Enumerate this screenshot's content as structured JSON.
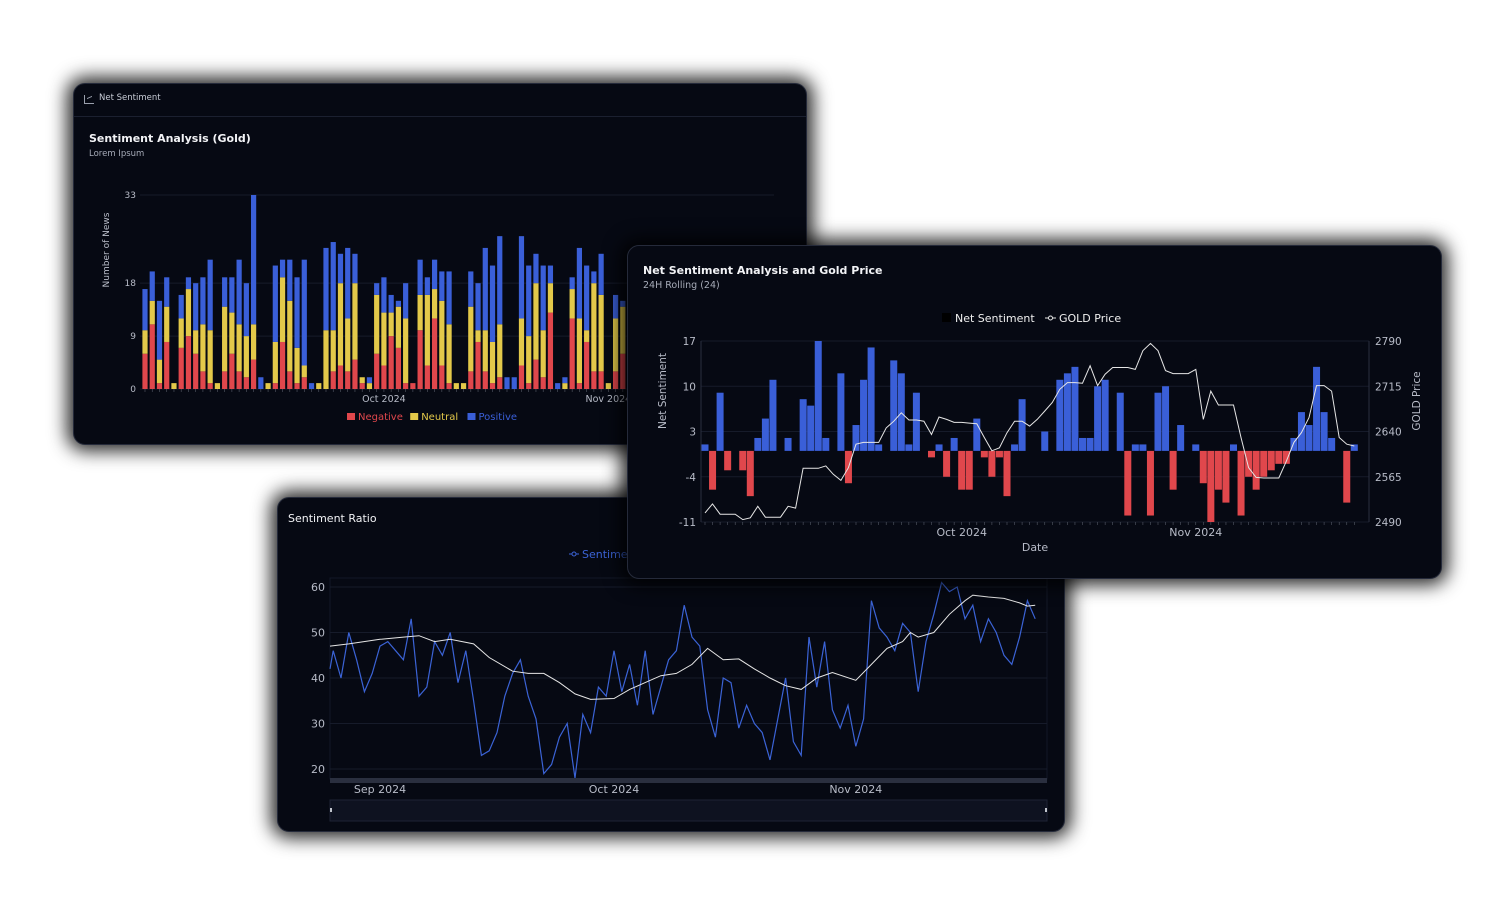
{
  "colors": {
    "negative": "#e0474c",
    "neutral": "#e3c94a",
    "positive": "#3a5fd8",
    "price": "#e6e6e6",
    "ratio": "#3b63d6",
    "card_bg": "#060913"
  },
  "card1": {
    "header_icon": "bar-chart-icon",
    "header": "Net Sentiment",
    "title": "Sentiment Analysis (Gold)",
    "subtitle": "Lorem Ipsum"
  },
  "card2": {
    "title": "Net Sentiment Analysis and Gold Price",
    "subtitle": "24H Rolling (24)"
  },
  "card3": {
    "title": "Sentiment Ratio"
  },
  "chart_data": [
    {
      "type": "bar",
      "stacked": true,
      "ylabel": "Number of News",
      "ylim": [
        0,
        33
      ],
      "y_ticks": [
        "0",
        "9",
        "18",
        "33"
      ],
      "x_start": "2024-08-29",
      "x_step": "1 day",
      "x_ticks": [
        {
          "label": "Oct 2024",
          "date": "2024-10-01"
        },
        {
          "label": "Nov 2024",
          "date": "2024-11-01"
        }
      ],
      "legend": "bottom",
      "grid": true,
      "series": [
        {
          "name": "Negative",
          "values": [
            6,
            11,
            1,
            8,
            0,
            7,
            9,
            6,
            3,
            1,
            0,
            3,
            6,
            3,
            2,
            5,
            0,
            0,
            1,
            8,
            3,
            1,
            2,
            0,
            0,
            0,
            3,
            4,
            3,
            5,
            1,
            0,
            6,
            4,
            9,
            7,
            1,
            1,
            10,
            4,
            12,
            4,
            1,
            0,
            0,
            3,
            8,
            3,
            1,
            2,
            0,
            0,
            4,
            1,
            5,
            2,
            13,
            0,
            0,
            12,
            1,
            8,
            3,
            3,
            0,
            3,
            6
          ]
        },
        {
          "name": "Neutral",
          "values": [
            4,
            4,
            4,
            6,
            1,
            5,
            8,
            4,
            8,
            9,
            1,
            11,
            7,
            8,
            7,
            6,
            0,
            1,
            7,
            11,
            12,
            6,
            2,
            0,
            1,
            10,
            7,
            14,
            9,
            13,
            1,
            1,
            10,
            9,
            4,
            7,
            11,
            0,
            6,
            12,
            5,
            11,
            10,
            1,
            1,
            11,
            2,
            7,
            7,
            9,
            0,
            0,
            8,
            8,
            13,
            8,
            5,
            0,
            1,
            5,
            11,
            2,
            15,
            13,
            1,
            9,
            8
          ]
        },
        {
          "name": "Positive",
          "values": [
            7,
            5,
            10,
            5,
            0,
            4,
            2,
            8,
            8,
            12,
            0,
            5,
            6,
            11,
            9,
            22,
            2,
            0,
            13,
            3,
            7,
            12,
            18,
            1,
            0,
            14,
            15,
            5,
            12,
            5,
            0,
            1,
            2,
            6,
            3,
            1,
            6,
            0,
            6,
            3,
            5,
            5,
            9,
            0,
            0,
            6,
            8,
            14,
            13,
            15,
            2,
            2,
            14,
            12,
            5,
            11,
            3,
            1,
            1,
            2,
            12,
            11,
            2,
            7,
            0,
            4,
            1
          ]
        }
      ]
    },
    {
      "type": "bar+line",
      "xlabel": "Date",
      "ylabel": "Net Sentiment",
      "y2label": "GOLD Price",
      "ylim": [
        -11,
        17
      ],
      "y_ticks": [
        "17",
        "10",
        "3",
        "-4",
        "-11"
      ],
      "y2lim": [
        2490,
        2790
      ],
      "y2_ticks": [
        "2790",
        "2715",
        "2640",
        "2565",
        "2490"
      ],
      "x_start": "2024-08-28",
      "x_step": "1 day",
      "x_ticks": [
        {
          "label": "Oct 2024",
          "date": "2024-10-01"
        },
        {
          "label": "Nov 2024",
          "date": "2024-11-01"
        }
      ],
      "legend": "top",
      "grid": true,
      "series": [
        {
          "name": "Net Sentiment",
          "type": "bar",
          "values": [
            1,
            -6,
            9,
            -3,
            0,
            -3,
            -7,
            2,
            5,
            11,
            0,
            2,
            0,
            8,
            7,
            17,
            2,
            0,
            12,
            -5,
            4,
            11,
            16,
            1,
            0,
            14,
            12,
            1,
            9,
            0,
            -1,
            1,
            -4,
            2,
            -6,
            -6,
            5,
            -1,
            -4,
            -1,
            -7,
            1,
            8,
            0,
            0,
            3,
            0,
            11,
            12,
            13,
            2,
            2,
            10,
            11,
            0,
            9,
            -10,
            1,
            1,
            -10,
            9,
            10,
            -6,
            4,
            0,
            1,
            -5,
            -11,
            -6,
            -8,
            1,
            -10,
            -4,
            -6,
            -4,
            -3,
            -2,
            -2,
            2,
            6,
            4,
            13,
            6,
            2,
            0,
            -8,
            1
          ]
        },
        {
          "name": "GOLD Price",
          "type": "line",
          "values": [
            2505,
            2520,
            2503,
            2503,
            2503,
            2494,
            2497,
            2516,
            2498,
            2498,
            2498,
            2516,
            2513,
            2579,
            2579,
            2579,
            2583,
            2569,
            2559,
            2580,
            2619,
            2622,
            2622,
            2622,
            2646,
            2657,
            2671,
            2659,
            2659,
            2657,
            2635,
            2664,
            2660,
            2655,
            2655,
            2654,
            2653,
            2630,
            2608,
            2613,
            2638,
            2657,
            2657,
            2649,
            2660,
            2674,
            2688,
            2710,
            2721,
            2721,
            2720,
            2749,
            2716,
            2735,
            2746,
            2746,
            2746,
            2743,
            2774,
            2786,
            2774,
            2741,
            2736,
            2736,
            2736,
            2743,
            2660,
            2707,
            2684,
            2684,
            2684,
            2630,
            2580,
            2564,
            2563,
            2563,
            2563,
            2591,
            2622,
            2638,
            2663,
            2716,
            2716,
            2707,
            2630,
            2619,
            2616
          ]
        }
      ]
    },
    {
      "type": "line",
      "ylim": [
        20,
        60
      ],
      "y_ticks": [
        "60",
        "50",
        "40",
        "30",
        "20"
      ],
      "x_ticks": [
        {
          "label": "Sep 2024",
          "date": "2024-09-01"
        },
        {
          "label": "Oct 2024",
          "date": "2024-10-01"
        },
        {
          "label": "Nov 2024",
          "date": "2024-11-01"
        }
      ],
      "legend": "top",
      "legend_text": "Sentime",
      "grid": true,
      "range_slider": true,
      "series": [
        {
          "type": "line",
          "x_start": "2024-08-25",
          "x_step": "1 day",
          "values": [
            42,
            46,
            40,
            50,
            44,
            37,
            41,
            47,
            48,
            46,
            44,
            53,
            36,
            38,
            48,
            45,
            50,
            39,
            46,
            35,
            23,
            24,
            28,
            36,
            41,
            44,
            36,
            31,
            19,
            21,
            27,
            30,
            18,
            32,
            28,
            38,
            36,
            46,
            37,
            43,
            34,
            46,
            32,
            38,
            44,
            46,
            56,
            49,
            47,
            33,
            27,
            40,
            39,
            29,
            34,
            30,
            28,
            22,
            31,
            40,
            26,
            23,
            49,
            38,
            48,
            33,
            29,
            34,
            25,
            31,
            57,
            51,
            49,
            46,
            52,
            50,
            37,
            48,
            54,
            61,
            59,
            60,
            53,
            56,
            48,
            53,
            50,
            45,
            43,
            49,
            57,
            53
          ]
        },
        {
          "type": "line",
          "points": [
            [
              "2024-08-25",
              47
            ],
            [
              "2024-08-28",
              47.5
            ],
            [
              "2024-09-01",
              48.5
            ],
            [
              "2024-09-04",
              49
            ],
            [
              "2024-09-06",
              49.3
            ],
            [
              "2024-09-08",
              48
            ],
            [
              "2024-09-10",
              48.5
            ],
            [
              "2024-09-13",
              47.5
            ],
            [
              "2024-09-15",
              44.5
            ],
            [
              "2024-09-18",
              41.5
            ],
            [
              "2024-09-20",
              41
            ],
            [
              "2024-09-22",
              41
            ],
            [
              "2024-09-24",
              39
            ],
            [
              "2024-09-26",
              36.5
            ],
            [
              "2024-09-28",
              35.3
            ],
            [
              "2024-10-01",
              35.5
            ],
            [
              "2024-10-03",
              37.5
            ],
            [
              "2024-10-05",
              39
            ],
            [
              "2024-10-07",
              40.5
            ],
            [
              "2024-10-09",
              41
            ],
            [
              "2024-10-11",
              43
            ],
            [
              "2024-10-13",
              46.5
            ],
            [
              "2024-10-15",
              44
            ],
            [
              "2024-10-17",
              44.2
            ],
            [
              "2024-10-19",
              42
            ],
            [
              "2024-10-21",
              40
            ],
            [
              "2024-10-23",
              38.3
            ],
            [
              "2024-10-25",
              37.5
            ],
            [
              "2024-10-27",
              40
            ],
            [
              "2024-10-29",
              41.2
            ],
            [
              "2024-11-01",
              39.5
            ],
            [
              "2024-11-03",
              43
            ],
            [
              "2024-11-05",
              46.5
            ],
            [
              "2024-11-07",
              48
            ],
            [
              "2024-11-08",
              50
            ],
            [
              "2024-11-09",
              49
            ],
            [
              "2024-11-11",
              50
            ],
            [
              "2024-11-13",
              54
            ],
            [
              "2024-11-15",
              57
            ],
            [
              "2024-11-16",
              58.2
            ],
            [
              "2024-11-18",
              57.8
            ],
            [
              "2024-11-20",
              57.5
            ],
            [
              "2024-11-22",
              56.5
            ],
            [
              "2024-11-23",
              55.8
            ],
            [
              "2024-11-24",
              56
            ]
          ]
        }
      ]
    }
  ]
}
